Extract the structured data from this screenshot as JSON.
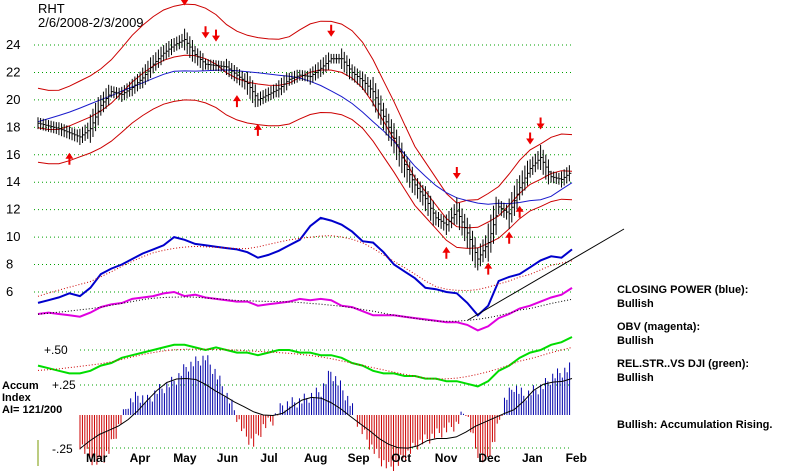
{
  "header": {
    "symbol": "RHT",
    "date_range": "2/6/2008-2/3/2009"
  },
  "accum_label": {
    "line1": "Accum",
    "line2": "Index",
    "line3": "AI= 121/200"
  },
  "notes": [
    {
      "title": "CLOSING POWER (blue):",
      "value": "Bullish"
    },
    {
      "title": "OBV (magenta):",
      "value": "Bullish"
    },
    {
      "title": "REL.STR..VS DJI (green):",
      "value": "Bullish"
    },
    {
      "title": "Bullish: Accumulation Rising.",
      "value": ""
    }
  ],
  "colors": {
    "price": "#000000",
    "band": "#cc0000",
    "ma_blue": "#1a1acc",
    "closing_power": "#0000cc",
    "obv": "#e000e0",
    "rel_strength": "#00dd00",
    "accum_pos": "#0000aa",
    "accum_neg": "#cc0000",
    "grid": "#00a000",
    "arrow": "#ee0000"
  },
  "chart_data": {
    "type": "line",
    "x_labels": [
      "Mar",
      "Apr",
      "May",
      "Jun",
      "Jul",
      "Aug",
      "Sep",
      "Oct",
      "Nov",
      "Dec",
      "Jan",
      "Feb"
    ],
    "y_ticks": [
      24,
      22,
      20,
      18,
      16,
      14,
      12,
      10,
      8,
      6
    ],
    "ylim": [
      4,
      25
    ],
    "indicator_labels": {
      "rel_str_level": "+.50",
      "accum_high": "+.25",
      "accum_low": "-.25"
    },
    "price_close": [
      18.3,
      18.1,
      17.9,
      17.6,
      17.3,
      17.9,
      19.6,
      20.6,
      20.4,
      20.9,
      21.6,
      22.6,
      23.4,
      24.0,
      24.4,
      23.3,
      22.6,
      22.5,
      22.4,
      21.8,
      21.2,
      20.0,
      20.4,
      20.8,
      21.5,
      21.8,
      21.7,
      22.3,
      23.0,
      23.0,
      22.0,
      21.4,
      20.6,
      18.8,
      17.2,
      15.3,
      13.8,
      12.8,
      11.4,
      10.9,
      11.9,
      10.3,
      8.4,
      9.6,
      12.2,
      11.7,
      13.6,
      15.0,
      15.8,
      14.4,
      14.2,
      14.8
    ],
    "closing_power": [
      5.2,
      5.4,
      5.6,
      5.9,
      5.7,
      6.3,
      7.3,
      7.7,
      8.0,
      8.4,
      8.8,
      9.1,
      9.4,
      10.0,
      9.8,
      9.5,
      9.4,
      9.3,
      9.2,
      9.1,
      8.9,
      8.5,
      8.7,
      9.0,
      9.4,
      9.8,
      10.8,
      11.4,
      11.2,
      10.9,
      10.4,
      9.7,
      9.6,
      8.9,
      8.0,
      7.5,
      7.0,
      6.3,
      6.2,
      6.0,
      5.9,
      5.2,
      4.3,
      5.0,
      6.8,
      7.1,
      7.3,
      7.8,
      8.3,
      8.6,
      8.5,
      9.1
    ],
    "obv": [
      4.4,
      4.5,
      4.4,
      4.3,
      4.2,
      4.5,
      4.9,
      5.1,
      5.2,
      5.5,
      5.6,
      5.7,
      5.9,
      6.0,
      5.7,
      5.8,
      5.6,
      5.5,
      5.4,
      5.3,
      5.3,
      5.0,
      5.1,
      5.2,
      5.3,
      5.5,
      5.4,
      5.5,
      5.4,
      5.0,
      4.9,
      4.6,
      4.3,
      4.3,
      4.3,
      4.2,
      4.1,
      4.0,
      3.9,
      3.8,
      3.8,
      3.6,
      3.2,
      3.5,
      4.1,
      4.4,
      4.8,
      5.0,
      5.3,
      5.6,
      5.8,
      6.3
    ],
    "rel_strength": [
      0.44,
      0.43,
      0.42,
      0.41,
      0.41,
      0.42,
      0.44,
      0.45,
      0.47,
      0.48,
      0.49,
      0.5,
      0.51,
      0.52,
      0.52,
      0.51,
      0.5,
      0.51,
      0.5,
      0.49,
      0.49,
      0.48,
      0.49,
      0.5,
      0.5,
      0.49,
      0.49,
      0.48,
      0.48,
      0.47,
      0.45,
      0.44,
      0.42,
      0.41,
      0.41,
      0.4,
      0.4,
      0.39,
      0.39,
      0.38,
      0.38,
      0.37,
      0.36,
      0.38,
      0.42,
      0.44,
      0.47,
      0.49,
      0.5,
      0.52,
      0.53,
      0.55
    ],
    "accum_index": [
      -0.12,
      -0.18,
      -0.2,
      -0.15,
      -0.05,
      0.05,
      0.08,
      0.06,
      0.1,
      0.12,
      0.15,
      0.2,
      0.22,
      0.24,
      0.18,
      0.1,
      0.02,
      -0.08,
      -0.12,
      -0.05,
      -0.02,
      0.04,
      0.05,
      0.06,
      0.08,
      0.1,
      0.18,
      0.12,
      0.05,
      -0.05,
      -0.12,
      -0.18,
      -0.22,
      -0.2,
      -0.16,
      -0.12,
      -0.1,
      -0.08,
      -0.06,
      -0.04,
      0.02,
      -0.14,
      -0.2,
      -0.1,
      0.06,
      0.12,
      0.08,
      0.1,
      0.12,
      0.16,
      0.18,
      0.2
    ]
  }
}
